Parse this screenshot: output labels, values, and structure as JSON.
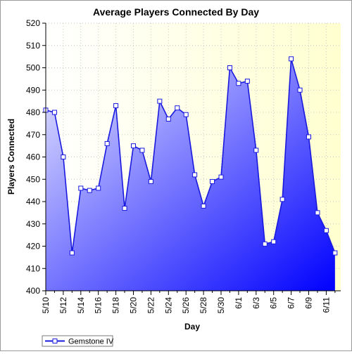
{
  "chart_data": {
    "type": "area",
    "title": "Average Players Connected By Day",
    "xlabel": "Day",
    "ylabel": "Players Connected",
    "ylim": [
      400,
      520
    ],
    "yticks": [
      400,
      410,
      420,
      430,
      440,
      450,
      460,
      470,
      480,
      490,
      500,
      510,
      520
    ],
    "x": [
      "5/10",
      "5/11",
      "5/12",
      "5/13",
      "5/14",
      "5/15",
      "5/16",
      "5/17",
      "5/18",
      "5/19",
      "5/20",
      "5/21",
      "5/22",
      "5/23",
      "5/24",
      "5/25",
      "5/26",
      "5/27",
      "5/28",
      "5/29",
      "5/30",
      "5/31",
      "6/1",
      "6/2",
      "6/3",
      "6/4",
      "6/5",
      "6/6",
      "6/7",
      "6/8",
      "6/9",
      "6/10",
      "6/11",
      "6/12"
    ],
    "xtick_labels": [
      "5/10",
      "5/12",
      "5/14",
      "5/16",
      "5/18",
      "5/20",
      "5/22",
      "5/24",
      "5/26",
      "5/28",
      "5/30",
      "6/1",
      "6/3",
      "6/5",
      "6/7",
      "6/9",
      "6/11"
    ],
    "series": [
      {
        "name": "Gemstone IV",
        "values": [
          481,
          480,
          460,
          417,
          446,
          445,
          446,
          466,
          483,
          437,
          465,
          463,
          449,
          485,
          477,
          482,
          479,
          452,
          438,
          449,
          451,
          500,
          493,
          494,
          463,
          421,
          422,
          441,
          504,
          490,
          469,
          435,
          427,
          417
        ]
      }
    ],
    "grid": true,
    "legend_position": "bottom-left",
    "colors": {
      "line": "#1a1adf",
      "fill_light": "#e8e8ff",
      "fill_dark": "#0000ff",
      "plot_bg_left": "#ffffff",
      "plot_bg_right": "#ffffd0"
    }
  }
}
